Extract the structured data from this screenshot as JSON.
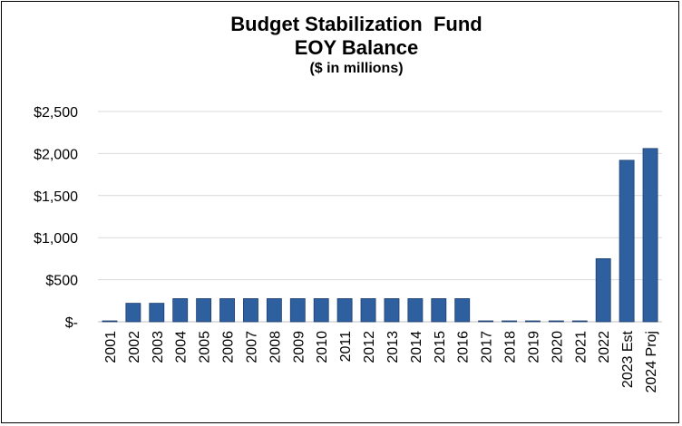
{
  "chart_data": {
    "type": "bar",
    "title_line1": "Budget Stabilization  Fund",
    "title_line2": "EOY Balance",
    "subtitle": "($ in millions)",
    "xlabel": "",
    "ylabel": "",
    "ylim": [
      0,
      2500
    ],
    "yticks": [
      0,
      500,
      1000,
      1500,
      2000,
      2500
    ],
    "ytick_labels": [
      "$-",
      "$500",
      "$1,000",
      "$1,500",
      "$2,000",
      "$2,500"
    ],
    "grid": true,
    "legend": "none",
    "bar_color": "#2E5F9E",
    "bar_edge": "#1f3f6e",
    "grid_color": "#d9d9d9",
    "categories": [
      "2001",
      "2002",
      "2003",
      "2004",
      "2005",
      "2006",
      "2007",
      "2008",
      "2009",
      "2010",
      "2011",
      "2012",
      "2013",
      "2014",
      "2015",
      "2016",
      "2017",
      "2018",
      "2019",
      "2020",
      "2021",
      "2022",
      "2023 Est",
      "2024 Proj"
    ],
    "values": [
      10,
      220,
      220,
      275,
      275,
      275,
      275,
      275,
      275,
      275,
      275,
      275,
      275,
      275,
      275,
      275,
      5,
      5,
      5,
      5,
      5,
      750,
      1920,
      2060
    ]
  }
}
